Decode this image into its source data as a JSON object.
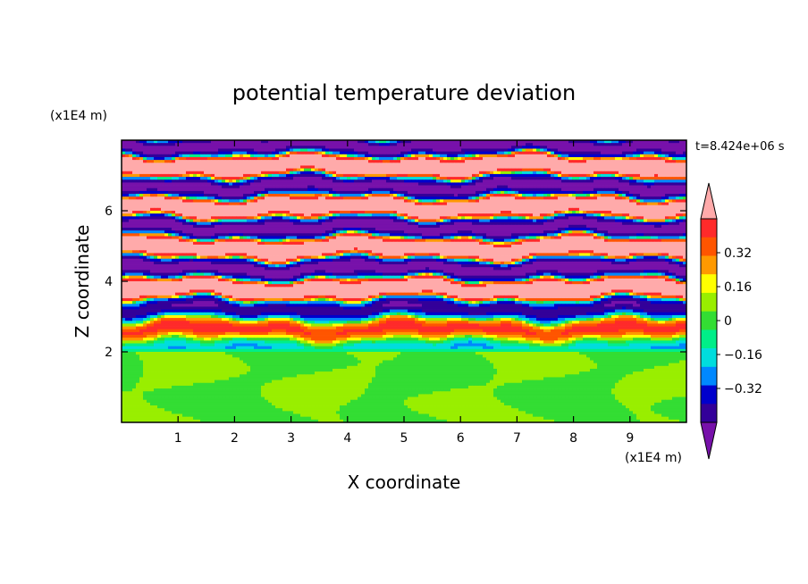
{
  "chart_data": {
    "type": "heatmap",
    "title": "potential temperature deviation",
    "time_label": "t=8.424e+06 s",
    "xlabel": "X coordinate",
    "ylabel": "Z coordinate",
    "x_unit": "(x1E4 m)",
    "z_unit": "(x1E4 m)",
    "xlim": [
      0,
      10
    ],
    "zlim": [
      0,
      8
    ],
    "x_ticks": [
      1,
      2,
      3,
      4,
      5,
      6,
      7,
      8,
      9
    ],
    "z_ticks": [
      2,
      4,
      6
    ],
    "colorbar": {
      "levels": [
        -0.48,
        -0.4,
        -0.32,
        -0.24,
        -0.16,
        -0.08,
        0,
        0.08,
        0.16,
        0.24,
        0.32,
        0.4,
        0.48
      ],
      "labeled_levels": [
        0.32,
        0.16,
        0,
        -0.16,
        -0.32
      ],
      "labels": [
        "0.32",
        "0.16",
        "0",
        "−0.16",
        "−0.32"
      ],
      "colors": [
        "#ffaaaa",
        "#ff2a2a",
        "#ff5500",
        "#ff9900",
        "#ffff00",
        "#99ee00",
        "#33dd33",
        "#00ee88",
        "#00dddd",
        "#0088ff",
        "#0000cc",
        "#330099",
        "#7711aa"
      ],
      "extend": "both"
    },
    "structure": {
      "lower_layer_top_z": 2.0,
      "lower_layer_values": [
        0.04,
        -0.04
      ],
      "stratified_bands_z": [
        2.1,
        8.0
      ],
      "upper_band_values": [
        0.48,
        -0.48
      ]
    }
  }
}
